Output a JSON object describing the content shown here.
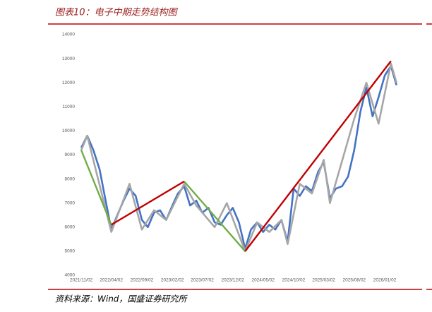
{
  "chart_data": {
    "type": "line",
    "title": "图表10：电子中期走势结构图",
    "source": "资料来源：Wind，国盛证券研究所",
    "xlim": [
      "2021/10/15",
      "2026/04/18"
    ],
    "xticks": [
      "2021/11/02",
      "2022/04/02",
      "2022/09/02",
      "2023/02/02",
      "2023/07/02",
      "2023/12/02",
      "2024/05/02",
      "2024/10/02",
      "2025/03/02",
      "2025/08/02",
      "2026/01/02"
    ],
    "ylim": [
      4000,
      14000
    ],
    "yticks": [
      4000,
      5000,
      6000,
      7000,
      8000,
      9000,
      10000,
      11000,
      12000,
      13000,
      14000
    ],
    "series": [
      {
        "color": "#4472c4",
        "x": [
          "2021/11/02",
          "2021/12/02",
          "2022/01/02",
          "2022/02/02",
          "2022/03/02",
          "2022/04/02",
          "2022/05/02",
          "2022/06/02",
          "2022/07/02",
          "2022/08/02",
          "2022/09/02",
          "2022/10/02",
          "2022/11/02",
          "2022/12/02",
          "2023/01/02",
          "2023/02/02",
          "2023/03/02",
          "2023/04/02",
          "2023/05/02",
          "2023/06/02",
          "2023/07/02",
          "2023/08/02",
          "2023/09/02",
          "2023/10/02",
          "2023/11/02",
          "2023/12/02",
          "2024/01/02",
          "2024/02/02",
          "2024/03/02",
          "2024/04/02",
          "2024/05/02",
          "2024/06/02",
          "2024/07/02",
          "2024/08/02",
          "2024/09/02",
          "2024/10/02",
          "2024/11/02",
          "2024/12/02",
          "2025/01/02",
          "2025/02/02",
          "2025/03/02",
          "2025/04/02",
          "2025/05/02",
          "2025/06/02",
          "2025/07/02",
          "2025/08/02",
          "2025/09/02",
          "2025/10/02",
          "2025/11/02",
          "2025/12/02",
          "2026/01/02",
          "2026/02/02",
          "2026/03/02"
        ],
        "values": [
          9300,
          9800,
          9200,
          8400,
          7200,
          5900,
          6500,
          7100,
          7600,
          7300,
          6300,
          6000,
          6600,
          6700,
          6300,
          6900,
          7400,
          7700,
          6900,
          7100,
          6600,
          6800,
          6200,
          6100,
          6500,
          6800,
          6200,
          5100,
          5900,
          6200,
          5800,
          6100,
          5900,
          6300,
          5400,
          7600,
          7300,
          7700,
          7500,
          8300,
          8700,
          7200,
          7600,
          7700,
          8100,
          9200,
          10800,
          11800,
          10600,
          11400,
          12300,
          12700,
          11900
        ]
      },
      {
        "color": "#a6a6a6",
        "x": [
          "2021/11/02",
          "2021/12/02",
          "2022/04/02",
          "2022/07/02",
          "2022/09/02",
          "2022/11/02",
          "2023/01/02",
          "2023/04/02",
          "2023/06/02",
          "2023/09/02",
          "2023/11/02",
          "2024/02/02",
          "2024/04/02",
          "2024/06/02",
          "2024/08/02",
          "2024/09/02",
          "2024/11/02",
          "2025/01/02",
          "2025/03/02",
          "2025/04/02",
          "2025/08/02",
          "2025/10/02",
          "2025/12/02",
          "2026/02/02",
          "2026/03/02"
        ],
        "values": [
          9200,
          9800,
          5800,
          7800,
          5900,
          6700,
          6300,
          7800,
          6900,
          6000,
          7000,
          5000,
          6200,
          5800,
          6300,
          5300,
          7800,
          7400,
          8800,
          7000,
          10500,
          12000,
          10300,
          12800,
          12000
        ]
      },
      {
        "color": "#70ad47",
        "x": [
          "2021/11/02",
          "2022/04/02"
        ],
        "values": [
          9200,
          6100
        ]
      },
      {
        "color": "#70ad47",
        "x": [
          "2023/04/02",
          "2024/02/02"
        ],
        "values": [
          7900,
          5000
        ]
      },
      {
        "color": "#c00000",
        "x": [
          "2022/04/02",
          "2023/04/02"
        ],
        "values": [
          6100,
          7900
        ]
      },
      {
        "color": "#c00000",
        "x": [
          "2024/02/02",
          "2026/02/02"
        ],
        "values": [
          5000,
          12900
        ]
      }
    ]
  }
}
